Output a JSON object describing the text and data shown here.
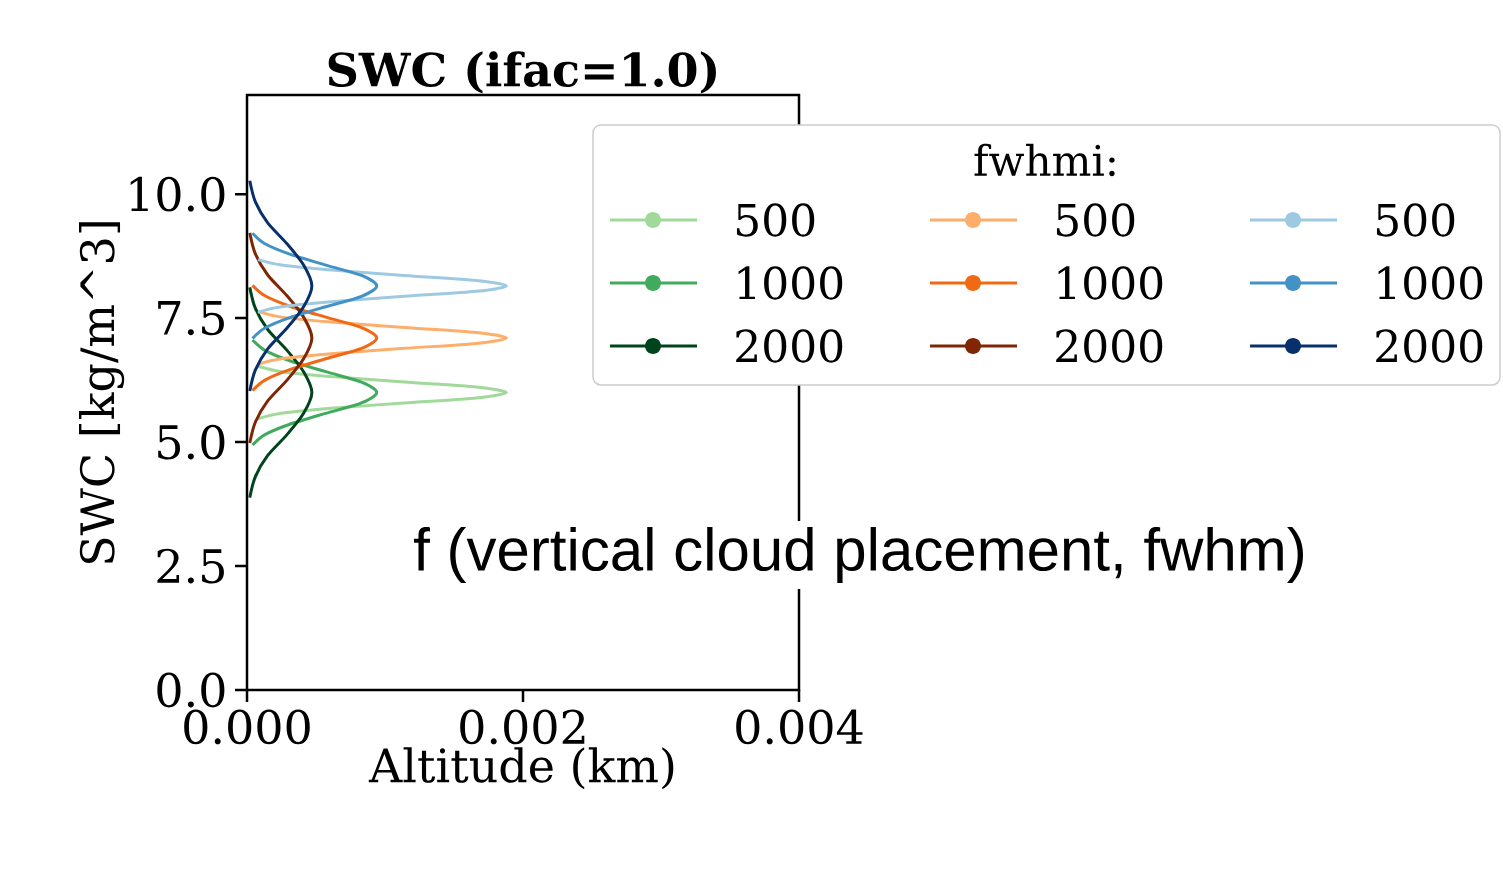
{
  "chart_data": {
    "type": "line",
    "title": "SWC (ifac=1.0)",
    "xlabel": "Altitude (km)",
    "ylabel": "SWC [kg/m^3]",
    "legend_title": "fwhmi:",
    "legend": "top right",
    "annotations": [
      "f (vertical cloud placement, fwhm)"
    ],
    "xlim": [
      0,
      0.004
    ],
    "ylim": [
      0,
      12
    ],
    "xticks": [
      {
        "value": 0,
        "label": "0.000"
      },
      {
        "value": 0.002,
        "label": "0.002"
      },
      {
        "value": 0.004,
        "label": "0.004"
      }
    ],
    "yticks": [
      {
        "value": 0,
        "label": "0.0"
      },
      {
        "value": 2.5,
        "label": "2.5"
      },
      {
        "value": 5,
        "label": "5.0"
      },
      {
        "value": 7.5,
        "label": "7.5"
      },
      {
        "value": 10,
        "label": "10.0"
      }
    ],
    "series": [
      {
        "name": "500",
        "color": "#a1d99b",
        "x": [
          8e-05,
          0.00025,
          0.00061,
          0.00114,
          0.00166,
          0.00188,
          0.00166,
          0.00114,
          0.00061,
          0.00025,
          8e-05
        ],
        "values": [
          5.47,
          5.58,
          5.68,
          5.79,
          5.89,
          6.0,
          6.11,
          6.21,
          6.32,
          6.42,
          6.53
        ]
      },
      {
        "name": "1000",
        "color": "#41ab5d",
        "x": [
          4e-05,
          0.00013,
          0.00031,
          0.00057,
          0.00083,
          0.00094,
          0.00083,
          0.00057,
          0.00031,
          0.00013,
          4e-05
        ],
        "values": [
          4.94,
          5.15,
          5.36,
          5.58,
          5.79,
          6.0,
          6.21,
          6.42,
          6.64,
          6.85,
          7.06
        ]
      },
      {
        "name": "2000",
        "color": "#00441b",
        "x": [
          2e-05,
          6e-05,
          0.00015,
          0.00029,
          0.00041,
          0.00047,
          0.00041,
          0.00029,
          0.00015,
          6e-05,
          2e-05
        ],
        "values": [
          3.88,
          4.3,
          4.73,
          5.15,
          5.58,
          6.0,
          6.42,
          6.85,
          7.27,
          7.7,
          8.12
        ]
      },
      {
        "name": "500",
        "color": "#fdae6b",
        "x": [
          8e-05,
          0.00025,
          0.00061,
          0.00114,
          0.00166,
          0.00188,
          0.00166,
          0.00114,
          0.00061,
          0.00025,
          8e-05
        ],
        "values": [
          6.57,
          6.68,
          6.78,
          6.89,
          6.99,
          7.1,
          7.21,
          7.31,
          7.42,
          7.52,
          7.63
        ]
      },
      {
        "name": "1000",
        "color": "#f16913",
        "x": [
          4e-05,
          0.00013,
          0.00031,
          0.00057,
          0.00083,
          0.00094,
          0.00083,
          0.00057,
          0.00031,
          0.00013,
          4e-05
        ],
        "values": [
          6.04,
          6.25,
          6.46,
          6.68,
          6.89,
          7.1,
          7.31,
          7.52,
          7.74,
          7.95,
          8.16
        ]
      },
      {
        "name": "2000",
        "color": "#7f2704",
        "x": [
          2e-05,
          6e-05,
          0.00015,
          0.00029,
          0.00041,
          0.00047,
          0.00041,
          0.00029,
          0.00015,
          6e-05,
          2e-05
        ],
        "values": [
          4.98,
          5.4,
          5.83,
          6.25,
          6.68,
          7.1,
          7.52,
          7.95,
          8.37,
          8.8,
          9.22
        ]
      },
      {
        "name": "500",
        "color": "#9ecae1",
        "x": [
          8e-05,
          0.00025,
          0.00061,
          0.00114,
          0.00166,
          0.00188,
          0.00166,
          0.00114,
          0.00061,
          0.00025,
          8e-05
        ],
        "values": [
          7.62,
          7.73,
          7.83,
          7.94,
          8.04,
          8.15,
          8.26,
          8.36,
          8.47,
          8.57,
          8.68
        ]
      },
      {
        "name": "1000",
        "color": "#4292c6",
        "x": [
          4e-05,
          0.00013,
          0.00031,
          0.00057,
          0.00083,
          0.00094,
          0.00083,
          0.00057,
          0.00031,
          0.00013,
          4e-05
        ],
        "values": [
          7.09,
          7.3,
          7.51,
          7.73,
          7.94,
          8.15,
          8.36,
          8.57,
          8.79,
          9.0,
          9.21
        ]
      },
      {
        "name": "2000",
        "color": "#08306b",
        "x": [
          2e-05,
          6e-05,
          0.00015,
          0.00029,
          0.00041,
          0.00047,
          0.00041,
          0.00029,
          0.00015,
          6e-05,
          2e-05
        ],
        "values": [
          6.03,
          6.45,
          6.88,
          7.3,
          7.73,
          8.15,
          8.57,
          9.0,
          9.42,
          9.85,
          10.27
        ]
      }
    ]
  }
}
